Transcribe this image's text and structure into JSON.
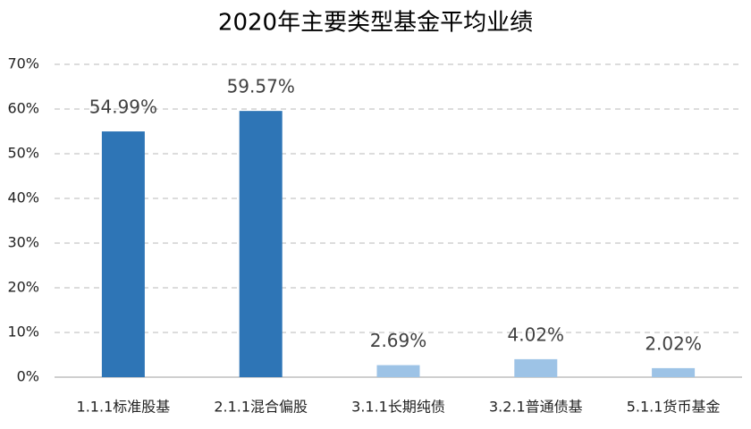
{
  "chart_data": {
    "type": "bar",
    "title": "2020年主要类型基金平均业绩",
    "categories": [
      "1.1.1标准股基",
      "2.1.1混合偏股",
      "3.1.1长期纯债",
      "3.2.1普通债基",
      "5.1.1货币基金"
    ],
    "values": [
      54.99,
      59.57,
      2.69,
      4.02,
      2.02
    ],
    "value_labels": [
      "54.99%",
      "59.57%",
      "2.69%",
      "4.02%",
      "2.02%"
    ],
    "colors": [
      "#2e75b6",
      "#2e75b6",
      "#9dc3e6",
      "#9dc3e6",
      "#9dc3e6"
    ],
    "ylim": [
      0,
      70
    ],
    "yticks": [
      {
        "value": 0,
        "label": "0%"
      },
      {
        "value": 10,
        "label": "10%"
      },
      {
        "value": 20,
        "label": "20%"
      },
      {
        "value": 30,
        "label": "30%"
      },
      {
        "value": 40,
        "label": "40%"
      },
      {
        "value": 50,
        "label": "50%"
      },
      {
        "value": 60,
        "label": "60%"
      },
      {
        "value": 70,
        "label": "70%"
      }
    ],
    "grid": true
  }
}
